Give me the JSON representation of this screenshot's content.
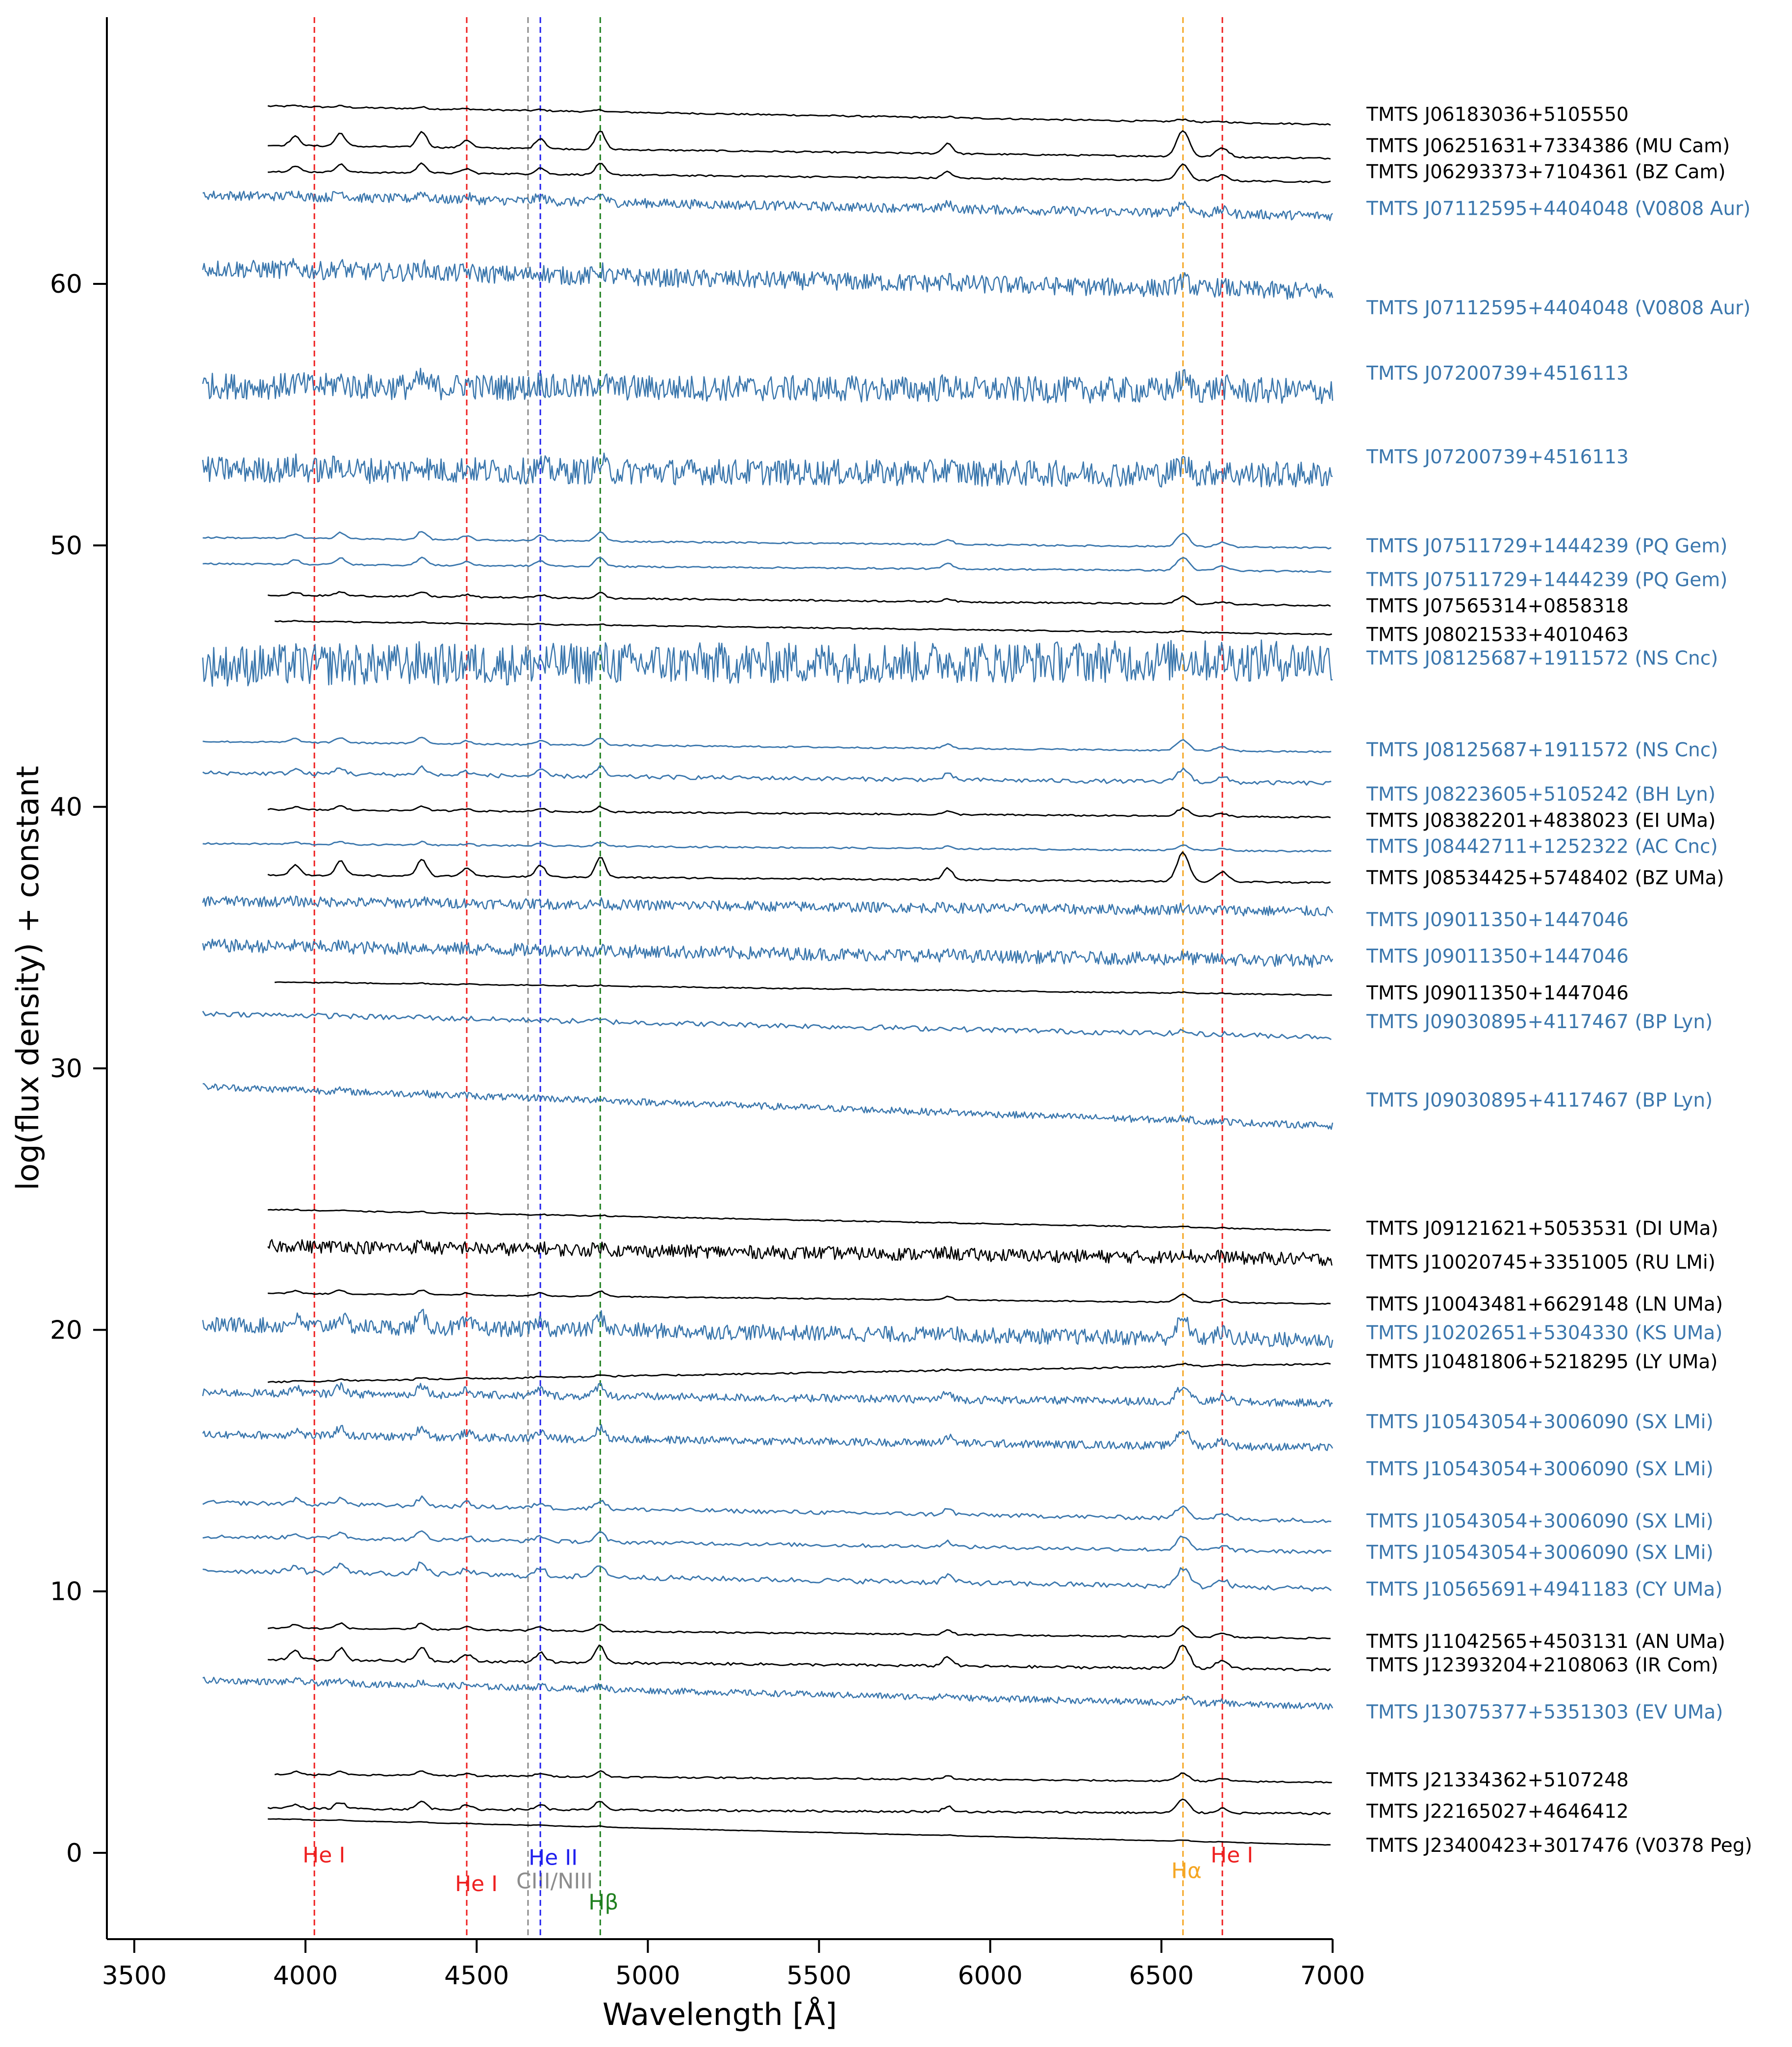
{
  "chart_data": {
    "type": "line",
    "title": "",
    "xlabel": "Wavelength [Å]",
    "ylabel": "log(flux density) + constant",
    "xlim": [
      3420,
      7000
    ],
    "ylim": [
      -3.3,
      70.2
    ],
    "xticks": [
      3500,
      4000,
      4500,
      5000,
      5500,
      6000,
      6500,
      7000
    ],
    "yticks": [
      0,
      10,
      20,
      30,
      40,
      50,
      60
    ],
    "grid": false,
    "colors": {
      "black": "#000000",
      "blue": "#3b77ad"
    },
    "lines": [
      {
        "name": "He I",
        "x": 4026,
        "color": "#ee2020",
        "label_y": -0.1
      },
      {
        "name": "He I",
        "x": 4471,
        "color": "#ee2020",
        "label_y": -1.2
      },
      {
        "name": "CIII/NIII",
        "x": 4650,
        "color": "#8c8c8c",
        "label_y": -1.1
      },
      {
        "name": "He II",
        "x": 4686,
        "color": "#2020ee",
        "label_y": -0.2
      },
      {
        "name": "Hβ",
        "x": 4861,
        "color": "#208020",
        "label_y": -1.9
      },
      {
        "name": "Hα",
        "x": 6563,
        "color": "#f5a623",
        "label_y": -0.7
      },
      {
        "name": "He I",
        "x": 6678,
        "color": "#ee2020",
        "label_y": -0.1
      }
    ],
    "series": [
      {
        "name": "TMTS J06183036+5105550",
        "color": "#000000",
        "x0": 3890,
        "y_start": 66.8,
        "y_end": 66.1,
        "noise": 0.03,
        "emission": 0.1,
        "label_y": 66.5
      },
      {
        "name": "TMTS J06251631+7334386 (MU Cam)",
        "color": "#000000",
        "x0": 3890,
        "y_start": 65.3,
        "y_end": 64.8,
        "noise": 0.03,
        "emission": 1.0,
        "label_y": 65.3
      },
      {
        "name": "TMTS J06293373+7104361 (BZ Cam)",
        "color": "#000000",
        "x0": 3890,
        "y_start": 64.3,
        "y_end": 63.9,
        "noise": 0.03,
        "emission": 0.6,
        "label_y": 64.3
      },
      {
        "name": "TMTS J07112595+4404048 (V0808 Aur)",
        "color": "#3b77ad",
        "x0": 3700,
        "y_start": 63.4,
        "y_end": 62.6,
        "noise": 0.18,
        "emission": 0.4,
        "label_y": 62.9
      },
      {
        "name": "TMTS J07112595+4404048 (V0808 Aur)",
        "color": "#3b77ad",
        "x0": 3700,
        "y_start": 60.6,
        "y_end": 59.7,
        "noise": 0.35,
        "emission": 0.3,
        "label_y": 59.1
      },
      {
        "name": "TMTS J07200739+4516113",
        "color": "#3b77ad",
        "x0": 3700,
        "y_start": 56.1,
        "y_end": 55.9,
        "noise": 0.5,
        "emission": 0.4,
        "label_y": 56.6
      },
      {
        "name": "TMTS J07200739+4516113",
        "color": "#3b77ad",
        "x0": 3700,
        "y_start": 52.9,
        "y_end": 52.7,
        "noise": 0.5,
        "emission": 0.4,
        "label_y": 53.4
      },
      {
        "name": "TMTS J07511729+1444239 (PQ Gem)",
        "color": "#3b77ad",
        "x0": 3700,
        "y_start": 50.3,
        "y_end": 49.9,
        "noise": 0.03,
        "emission": 0.5,
        "label_y": 50.0
      },
      {
        "name": "TMTS J07511729+1444239 (PQ Gem)",
        "color": "#3b77ad",
        "x0": 3700,
        "y_start": 49.3,
        "y_end": 49.0,
        "noise": 0.03,
        "emission": 0.5,
        "label_y": 48.7
      },
      {
        "name": "TMTS J07565314+0858318",
        "color": "#000000",
        "x0": 3890,
        "y_start": 48.1,
        "y_end": 47.7,
        "noise": 0.03,
        "emission": 0.3,
        "label_y": 47.7
      },
      {
        "name": "TMTS J08021533+4010463",
        "color": "#000000",
        "x0": 3910,
        "y_start": 47.1,
        "y_end": 46.6,
        "noise": 0.02,
        "emission": 0.05,
        "label_y": 46.6
      },
      {
        "name": "TMTS J08125687+1911572 (NS Cnc)",
        "color": "#3b77ad",
        "x0": 3700,
        "y_start": 45.4,
        "y_end": 45.6,
        "noise": 0.8,
        "emission": 0.2,
        "label_y": 45.7
      },
      {
        "name": "TMTS J08125687+1911572 (NS Cnc)",
        "color": "#3b77ad",
        "x0": 3700,
        "y_start": 42.5,
        "y_end": 42.1,
        "noise": 0.03,
        "emission": 0.4,
        "label_y": 42.2
      },
      {
        "name": "TMTS J08223605+5105242 (BH Lyn)",
        "color": "#3b77ad",
        "x0": 3700,
        "y_start": 41.3,
        "y_end": 40.9,
        "noise": 0.08,
        "emission": 0.5,
        "label_y": 40.5
      },
      {
        "name": "TMTS J08382201+4838023 (EI UMa)",
        "color": "#000000",
        "x0": 3890,
        "y_start": 39.9,
        "y_end": 39.6,
        "noise": 0.03,
        "emission": 0.3,
        "label_y": 39.5
      },
      {
        "name": "TMTS J08442711+1252322 (AC Cnc)",
        "color": "#3b77ad",
        "x0": 3700,
        "y_start": 38.6,
        "y_end": 38.3,
        "noise": 0.03,
        "emission": 0.2,
        "label_y": 38.5
      },
      {
        "name": "TMTS J08534425+5748402 (BZ UMa)",
        "color": "#000000",
        "x0": 3890,
        "y_start": 37.4,
        "y_end": 37.1,
        "noise": 0.03,
        "emission": 1.1,
        "label_y": 37.3
      },
      {
        "name": "TMTS J09011350+1447046",
        "color": "#3b77ad",
        "x0": 3700,
        "y_start": 36.4,
        "y_end": 36.0,
        "noise": 0.2,
        "emission": 0.1,
        "label_y": 35.7
      },
      {
        "name": "TMTS J09011350+1447046",
        "color": "#3b77ad",
        "x0": 3700,
        "y_start": 34.7,
        "y_end": 34.1,
        "noise": 0.25,
        "emission": 0.1,
        "label_y": 34.3
      },
      {
        "name": "TMTS J09011350+1447046",
        "color": "#000000",
        "x0": 3910,
        "y_start": 33.3,
        "y_end": 32.8,
        "noise": 0.02,
        "emission": 0.05,
        "label_y": 32.9
      },
      {
        "name": "TMTS J09030895+4117467 (BP Lyn)",
        "color": "#3b77ad",
        "x0": 3700,
        "y_start": 32.1,
        "y_end": 31.2,
        "noise": 0.1,
        "emission": 0.1,
        "label_y": 31.8
      },
      {
        "name": "TMTS J09030895+4117467 (BP Lyn)",
        "color": "#3b77ad",
        "x0": 3700,
        "y_start": 29.3,
        "y_end": 27.8,
        "noise": 0.13,
        "emission": 0.1,
        "label_y": 28.8
      },
      {
        "name": "TMTS J09121621+5053531 (DI UMa)",
        "color": "#000000",
        "x0": 3890,
        "y_start": 24.6,
        "y_end": 23.8,
        "noise": 0.02,
        "emission": 0.05,
        "label_y": 23.9
      },
      {
        "name": "TMTS J10020745+3351005 (RU LMi)",
        "color": "#000000",
        "x0": 3890,
        "y_start": 23.2,
        "y_end": 22.7,
        "noise": 0.25,
        "emission": 0.2,
        "label_y": 22.6
      },
      {
        "name": "TMTS J10043481+6629148 (LN UMa)",
        "color": "#000000",
        "x0": 3890,
        "y_start": 21.4,
        "y_end": 21.0,
        "noise": 0.02,
        "emission": 0.3,
        "label_y": 21.0
      },
      {
        "name": "TMTS J10202651+5304330 (KS UMa)",
        "color": "#3b77ad",
        "x0": 3700,
        "y_start": 20.2,
        "y_end": 19.6,
        "noise": 0.3,
        "emission": 0.7,
        "label_y": 19.9
      },
      {
        "name": "TMTS J10481806+5218295 (LY UMa)",
        "color": "#000000",
        "x0": 3890,
        "y_start": 18.0,
        "y_end": 18.7,
        "noise": 0.03,
        "emission": 0.1,
        "label_y": 18.8
      },
      {
        "name": "TMTS J10543054+3006090 (SX LMi)",
        "color": "#3b77ad",
        "x0": 3700,
        "y_start": 17.6,
        "y_end": 17.2,
        "noise": 0.15,
        "emission": 0.6,
        "label_y": 16.5
      },
      {
        "name": "TMTS J10543054+3006090 (SX LMi)",
        "color": "#3b77ad",
        "x0": 3700,
        "y_start": 16.0,
        "y_end": 15.5,
        "noise": 0.15,
        "emission": 0.6,
        "label_y": 14.7
      },
      {
        "name": "TMTS J10543054+3006090 (SX LMi)",
        "color": "#3b77ad",
        "x0": 3700,
        "y_start": 13.4,
        "y_end": 12.7,
        "noise": 0.08,
        "emission": 0.5,
        "label_y": 12.7
      },
      {
        "name": "TMTS J10543054+3006090 (SX LMi)",
        "color": "#3b77ad",
        "x0": 3700,
        "y_start": 12.1,
        "y_end": 11.5,
        "noise": 0.07,
        "emission": 0.5,
        "label_y": 11.5
      },
      {
        "name": "TMTS J10565691+4941183 (CY UMa)",
        "color": "#3b77ad",
        "x0": 3700,
        "y_start": 10.8,
        "y_end": 10.1,
        "noise": 0.1,
        "emission": 0.7,
        "label_y": 10.1
      },
      {
        "name": "TMTS J11042565+4503131 (AN UMa)",
        "color": "#000000",
        "x0": 3890,
        "y_start": 8.6,
        "y_end": 8.2,
        "noise": 0.03,
        "emission": 0.4,
        "label_y": 8.1
      },
      {
        "name": "TMTS J12393204+2108063 (IR Com)",
        "color": "#000000",
        "x0": 3890,
        "y_start": 7.4,
        "y_end": 7.0,
        "noise": 0.05,
        "emission": 0.9,
        "label_y": 7.2
      },
      {
        "name": "TMTS J13075377+5351303 (EV UMa)",
        "color": "#3b77ad",
        "x0": 3700,
        "y_start": 6.6,
        "y_end": 5.6,
        "noise": 0.12,
        "emission": 0.2,
        "label_y": 5.4
      },
      {
        "name": "TMTS J21334362+5107248",
        "color": "#000000",
        "x0": 3910,
        "y_start": 3.0,
        "y_end": 2.7,
        "noise": 0.03,
        "emission": 0.3,
        "label_y": 2.8
      },
      {
        "name": "TMTS J22165027+4646412",
        "color": "#000000",
        "x0": 3890,
        "y_start": 1.7,
        "y_end": 1.5,
        "noise": 0.04,
        "emission": 0.5,
        "label_y": 1.6
      },
      {
        "name": "TMTS J23400423+3017476 (V0378 Peg)",
        "color": "#000000",
        "x0": 3890,
        "y_start": 1.3,
        "y_end": 0.3,
        "noise": 0.01,
        "emission": 0.05,
        "label_y": 0.3
      }
    ]
  }
}
